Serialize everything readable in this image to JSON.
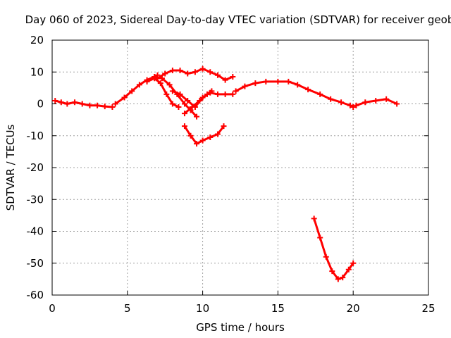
{
  "chart_data": {
    "type": "scatter",
    "title": "Day 060 of 2023, Sidereal Day-to-day VTEC variation (SDTVAR) for receiver geob",
    "xlabel": "GPS time / hours",
    "ylabel": "SDTVAR / TECUs",
    "xlim": [
      0,
      25
    ],
    "ylim": [
      -60,
      20
    ],
    "xticks": [
      "0",
      "5",
      "10",
      "15",
      "20",
      "25"
    ],
    "yticks": [
      "20",
      "10",
      "0",
      "-10",
      "-20",
      "-30",
      "-40",
      "-50",
      "-60"
    ],
    "grid": true,
    "marker": "plus",
    "series_color": "#ff0000",
    "series": [
      {
        "name": "arc-1",
        "x": [
          0.2,
          0.6,
          1.0,
          1.5,
          2.0,
          2.5,
          3.0,
          3.5,
          4.0
        ],
        "y": [
          1,
          0.5,
          0,
          0.5,
          0,
          -0.5,
          -0.5,
          -0.8,
          -1
        ]
      },
      {
        "name": "arc-2",
        "x": [
          4.2,
          4.8,
          5.3,
          5.8,
          6.3,
          6.8,
          7.0
        ],
        "y": [
          0,
          2,
          4,
          6,
          7.5,
          8.5,
          9
        ]
      },
      {
        "name": "arc-3",
        "x": [
          7.0,
          7.5,
          8.0,
          8.5,
          9.0,
          9.5,
          10.0,
          10.5,
          11.0,
          11.5,
          12.0
        ],
        "y": [
          8,
          9.5,
          10.5,
          10.5,
          9.5,
          10,
          11,
          10,
          9,
          7.5,
          8.5
        ]
      },
      {
        "name": "arc-4",
        "x": [
          6.3,
          6.8,
          7.2,
          7.6,
          8.0,
          8.4
        ],
        "y": [
          7,
          8,
          6.5,
          3,
          0,
          -1
        ]
      },
      {
        "name": "arc-5",
        "x": [
          6.8,
          7.3,
          7.8,
          8.3,
          8.8,
          9.2,
          9.6
        ],
        "y": [
          8.5,
          8,
          6,
          3,
          0,
          -2,
          -4
        ]
      },
      {
        "name": "arc-6",
        "x": [
          8.0,
          8.5,
          9.0,
          9.5,
          10.0,
          10.5,
          11.0,
          11.5,
          12.0
        ],
        "y": [
          4,
          3,
          1,
          -1,
          2,
          3.5,
          3,
          3,
          3
        ]
      },
      {
        "name": "arc-7",
        "x": [
          8.8,
          9.3,
          9.8,
          10.3,
          10.6
        ],
        "y": [
          -3,
          -1,
          1,
          3,
          4
        ]
      },
      {
        "name": "arc-8",
        "x": [
          8.8,
          9.2,
          9.6,
          10.0,
          10.5,
          11.0,
          11.4
        ],
        "y": [
          -7,
          -10,
          -12.5,
          -11.5,
          -10.5,
          -9.5,
          -7
        ]
      },
      {
        "name": "arc-9",
        "x": [
          12.2,
          12.8,
          13.5,
          14.2,
          15.0,
          15.7,
          16.3,
          17.0,
          17.8,
          18.5,
          19.2,
          19.8,
          20.0
        ],
        "y": [
          4,
          5.5,
          6.5,
          7,
          7,
          7,
          6,
          4.5,
          3,
          1.5,
          0.5,
          -0.5,
          -1
        ]
      },
      {
        "name": "arc-10",
        "x": [
          20.2,
          20.8,
          21.5,
          22.2,
          22.9
        ],
        "y": [
          -0.5,
          0.5,
          1,
          1.5,
          0
        ]
      },
      {
        "name": "arc-11",
        "x": [
          17.4,
          17.8,
          18.2,
          18.6,
          19.0,
          19.3,
          19.7,
          20.0
        ],
        "y": [
          -36,
          -42,
          -48,
          -52.5,
          -55,
          -54.5,
          -52,
          -50
        ]
      }
    ]
  }
}
